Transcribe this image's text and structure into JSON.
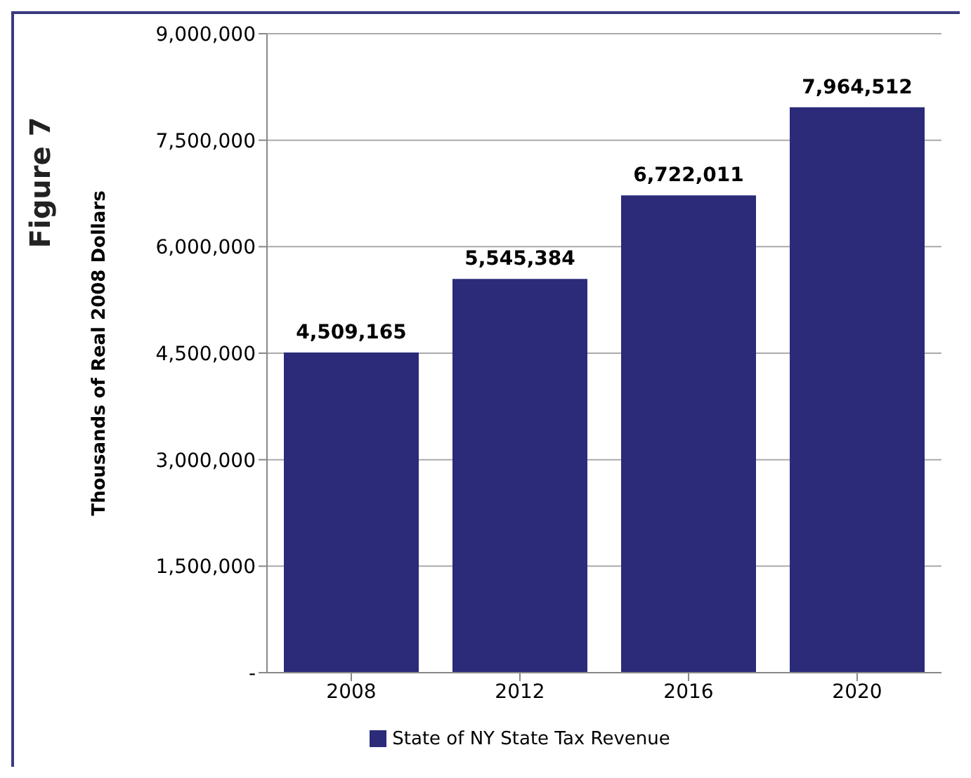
{
  "chart_data": {
    "type": "bar",
    "title": "Figure 7",
    "ylabel": "Thousands  of Real 2008 Dollars",
    "categories": [
      "2008",
      "2012",
      "2016",
      "2020"
    ],
    "series": [
      {
        "name": "State of NY State Tax Revenue",
        "color": "#2b2b7a",
        "values": [
          4509165,
          5545384,
          6722011,
          7964512
        ],
        "value_labels": [
          "4,509,165",
          "5,545,384",
          "6,722,011",
          "7,964,512"
        ]
      }
    ],
    "ylim": [
      0,
      9000000
    ],
    "yticks": [
      {
        "value": 0,
        "label": "-"
      },
      {
        "value": 1500000,
        "label": "1,500,000"
      },
      {
        "value": 3000000,
        "label": "3,000,000"
      },
      {
        "value": 4500000,
        "label": "4,500,000"
      },
      {
        "value": 6000000,
        "label": "6,000,000"
      },
      {
        "value": 7500000,
        "label": "7,500,000"
      },
      {
        "value": 9000000,
        "label": "9,000,000"
      }
    ],
    "grid": "y",
    "legend": "bottom"
  }
}
